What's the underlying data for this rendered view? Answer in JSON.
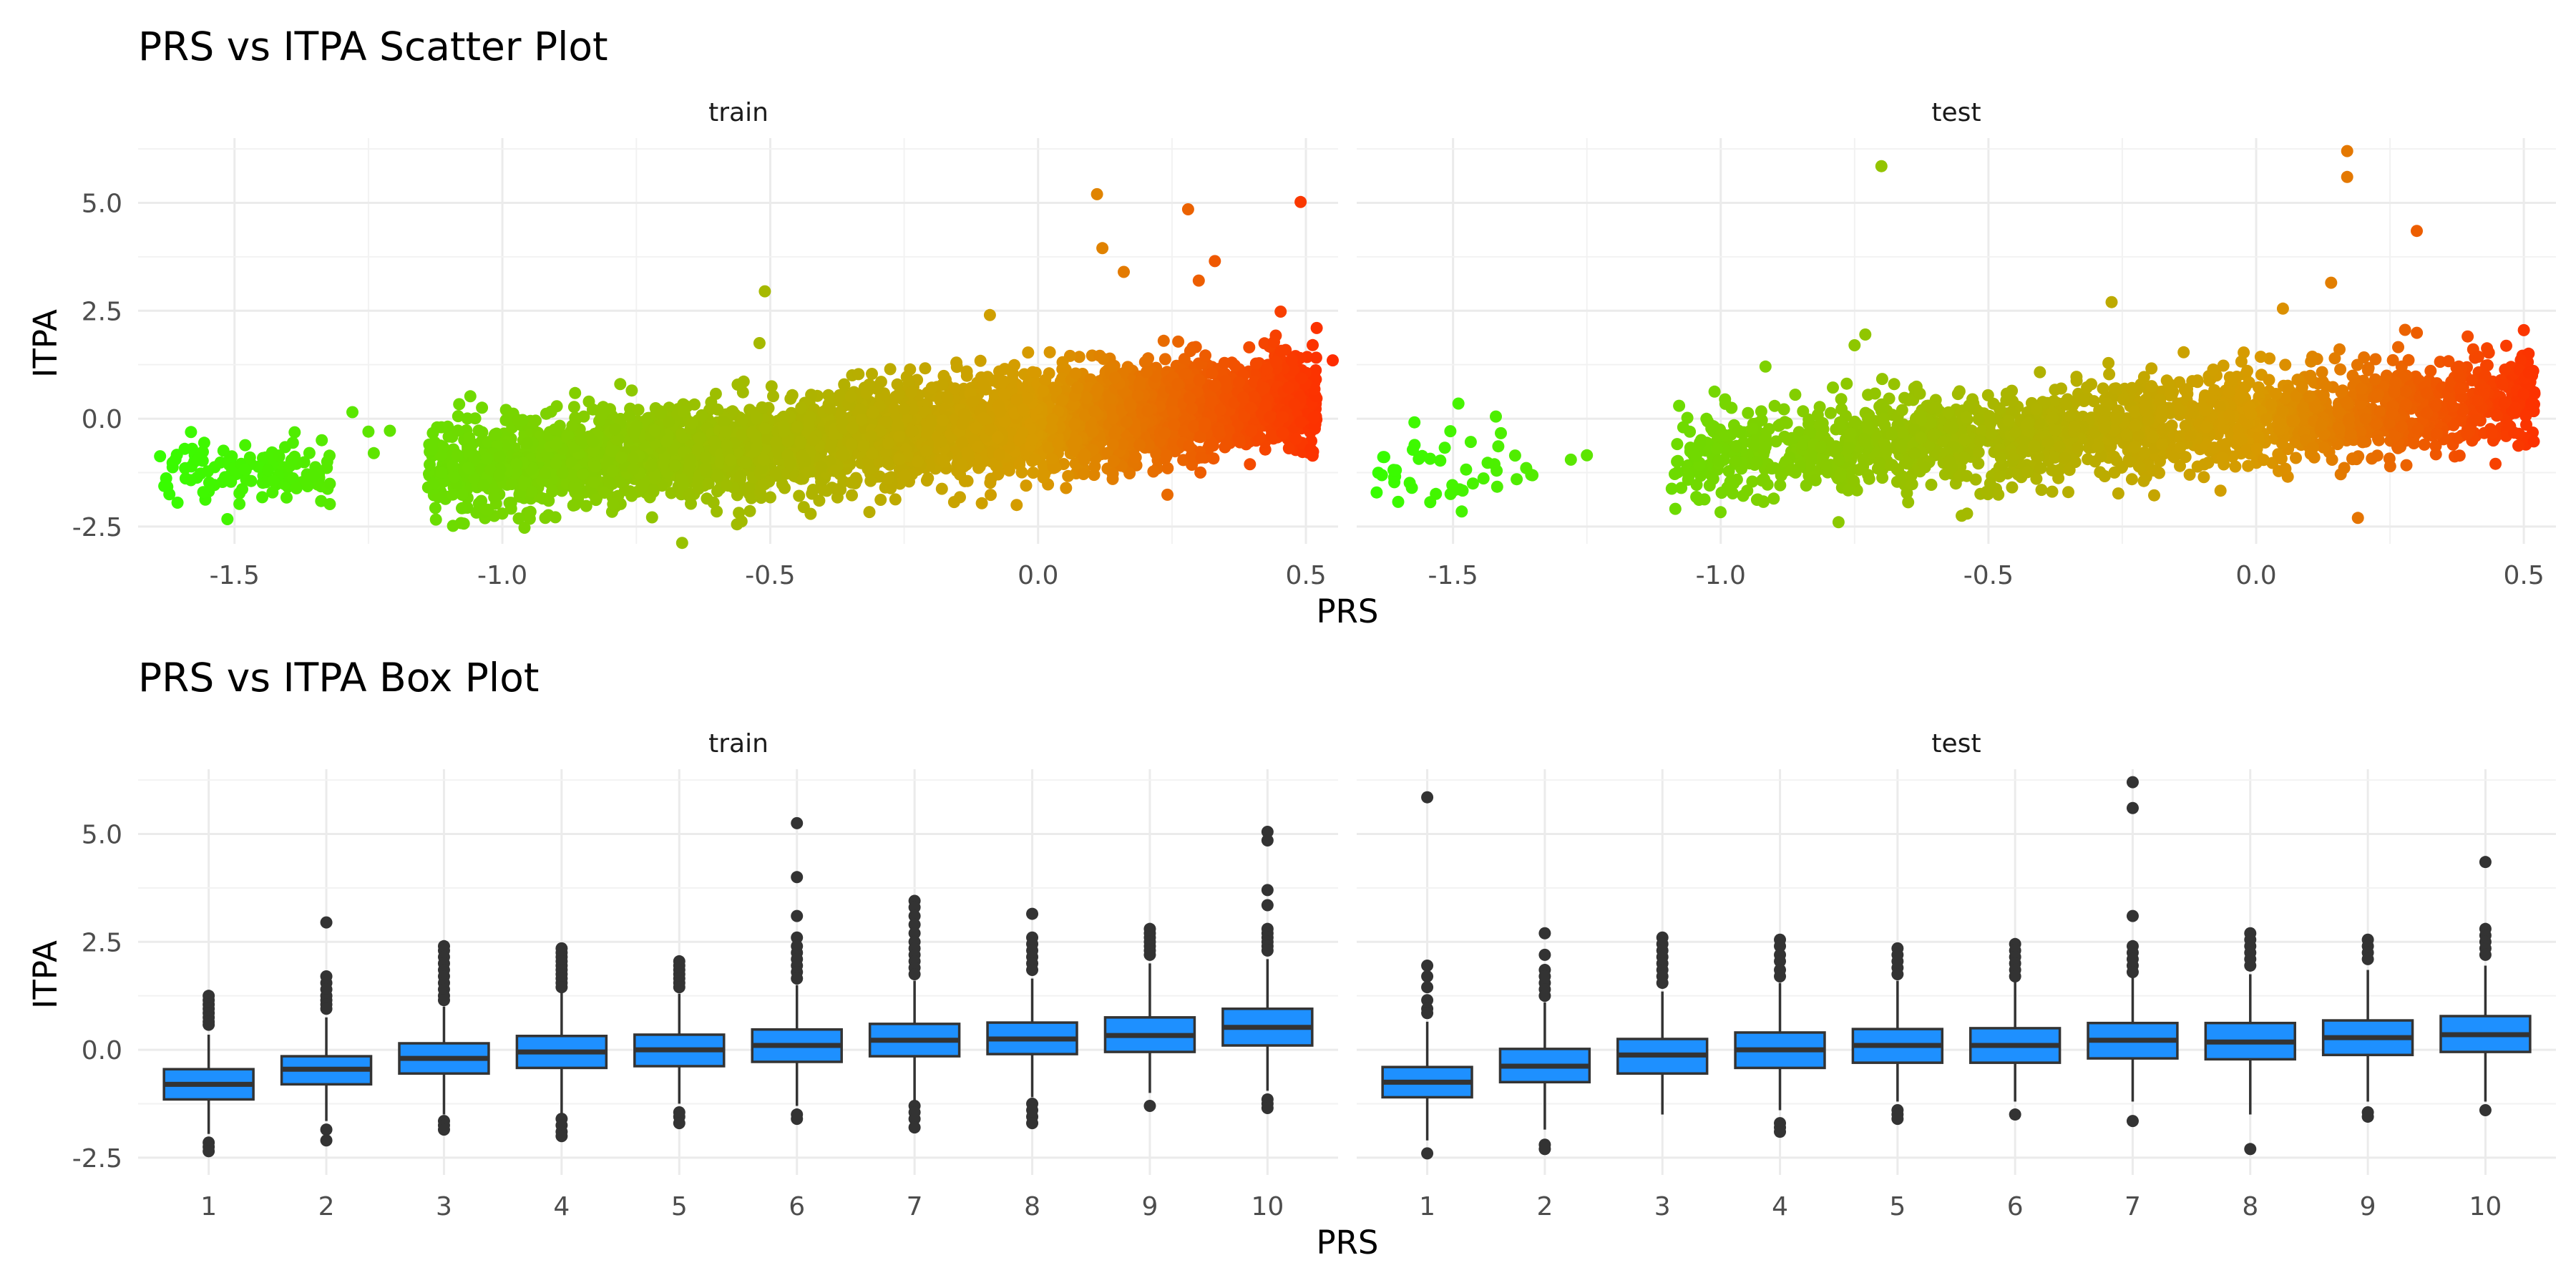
{
  "chart_data": [
    {
      "type": "scatter",
      "title": "PRS vs ITPA Scatter Plot",
      "xlabel": "PRS",
      "ylabel": "ITPA",
      "facets": [
        "train",
        "test"
      ],
      "xlim": [
        -1.68,
        0.56
      ],
      "ylim": [
        -2.9,
        6.5
      ],
      "x_ticks": [
        -1.5,
        -1.0,
        -0.5,
        0.0,
        0.5
      ],
      "x_tick_labels": [
        "-1.5",
        "-1.0",
        "-0.5",
        "0.0",
        "0.5"
      ],
      "y_ticks": [
        -2.5,
        0.0,
        2.5,
        5.0
      ],
      "y_tick_labels": [
        "-2.5",
        "0.0",
        "2.5",
        "5.0"
      ],
      "color_scale": {
        "low": "#33ff00",
        "mid": "#d89a00",
        "high": "#ff2a00",
        "mapped_to": "PRS"
      },
      "grid": true,
      "legend": "none",
      "panels": [
        {
          "name": "train",
          "trend": {
            "slope": 1.05,
            "intercept": -0.05
          },
          "clusters": [
            {
              "x_range": [
                -1.64,
                -1.32
              ],
              "y_center": -1.2,
              "y_spread": 0.35,
              "count": 120
            },
            {
              "x_range": [
                -1.14,
                0.52
              ],
              "y_center": -0.2,
              "y_spread": 0.55,
              "count": 4200
            }
          ],
          "outliers": [
            {
              "x": 0.11,
              "y": 5.2
            },
            {
              "x": 0.28,
              "y": 4.85
            },
            {
              "x": 0.49,
              "y": 5.02
            },
            {
              "x": 0.12,
              "y": 3.95
            },
            {
              "x": 0.33,
              "y": 3.65
            },
            {
              "x": -0.51,
              "y": 2.95
            },
            {
              "x": 0.16,
              "y": 3.4
            },
            {
              "x": 0.3,
              "y": 3.2
            },
            {
              "x": -0.52,
              "y": 1.75
            },
            {
              "x": 0.52,
              "y": 2.1
            },
            {
              "x": 0.55,
              "y": 1.35
            },
            {
              "x": -1.28,
              "y": 0.15
            },
            {
              "x": -1.25,
              "y": -0.3
            },
            {
              "x": -1.21,
              "y": -0.28
            },
            {
              "x": -1.24,
              "y": -0.8
            },
            {
              "x": -0.92,
              "y": -2.3
            },
            {
              "x": -1.0,
              "y": -2.2
            },
            {
              "x": -0.6,
              "y": -2.15
            },
            {
              "x": -0.04,
              "y": -2.0
            },
            {
              "x": -0.78,
              "y": 0.8
            },
            {
              "x": -0.09,
              "y": 2.4
            }
          ]
        },
        {
          "name": "test",
          "trend": {
            "slope": 0.85,
            "intercept": 0.0
          },
          "clusters": [
            {
              "x_range": [
                -1.65,
                -1.35
              ],
              "y_center": -1.3,
              "y_spread": 0.45,
              "count": 45
            },
            {
              "x_range": [
                -1.1,
                0.52
              ],
              "y_center": -0.2,
              "y_spread": 0.55,
              "count": 2000
            }
          ],
          "outliers": [
            {
              "x": -0.7,
              "y": 5.85
            },
            {
              "x": 0.17,
              "y": 6.2
            },
            {
              "x": 0.17,
              "y": 5.6
            },
            {
              "x": 0.3,
              "y": 4.35
            },
            {
              "x": 0.14,
              "y": 3.15
            },
            {
              "x": -1.49,
              "y": 0.35
            },
            {
              "x": -1.42,
              "y": 0.05
            },
            {
              "x": -0.73,
              "y": 1.95
            },
            {
              "x": -0.75,
              "y": 1.7
            },
            {
              "x": -0.27,
              "y": 2.7
            },
            {
              "x": 0.19,
              "y": -2.3
            },
            {
              "x": -0.78,
              "y": -2.4
            },
            {
              "x": -0.55,
              "y": -2.25
            },
            {
              "x": -0.54,
              "y": -2.2
            },
            {
              "x": 0.05,
              "y": 2.55
            },
            {
              "x": 0.5,
              "y": 2.05
            },
            {
              "x": -1.28,
              "y": -0.95
            },
            {
              "x": -1.25,
              "y": -0.85
            },
            {
              "x": -1.07,
              "y": -0.2
            },
            {
              "x": -0.98,
              "y": 0.25
            }
          ]
        }
      ]
    },
    {
      "type": "box",
      "title": "PRS vs ITPA Box Plot",
      "xlabel": "PRS",
      "ylabel": "ITPA",
      "facets": [
        "train",
        "test"
      ],
      "categories": [
        "1",
        "2",
        "3",
        "4",
        "5",
        "6",
        "7",
        "8",
        "9",
        "10"
      ],
      "ylim": [
        -2.9,
        6.5
      ],
      "y_ticks": [
        -2.5,
        0.0,
        2.5,
        5.0
      ],
      "y_tick_labels": [
        "-2.5",
        "0.0",
        "2.5",
        "5.0"
      ],
      "box_fill": "#1e90ff",
      "box_stroke": "#333333",
      "grid": true,
      "legend": "none",
      "panels": [
        {
          "name": "train",
          "boxes": [
            {
              "category": "1",
              "lower": -1.95,
              "q1": -1.15,
              "median": -0.8,
              "q3": -0.45,
              "upper": 0.35,
              "outliers": [
                1.25,
                1.15,
                1.05,
                0.95,
                0.85,
                0.75,
                0.65,
                0.58,
                -2.15,
                -2.25,
                -2.35
              ]
            },
            {
              "category": "2",
              "lower": -1.65,
              "q1": -0.8,
              "median": -0.45,
              "q3": -0.15,
              "upper": 0.75,
              "outliers": [
                2.95,
                1.7,
                1.55,
                1.4,
                1.25,
                1.15,
                1.05,
                0.95,
                -1.85,
                -2.1
              ]
            },
            {
              "category": "3",
              "lower": -1.5,
              "q1": -0.55,
              "median": -0.2,
              "q3": 0.15,
              "upper": 1.0,
              "outliers": [
                2.4,
                2.3,
                2.15,
                2.0,
                1.85,
                1.7,
                1.55,
                1.4,
                1.25,
                1.15,
                -1.65,
                -1.75,
                -1.85
              ]
            },
            {
              "category": "4",
              "lower": -1.55,
              "q1": -0.42,
              "median": -0.05,
              "q3": 0.32,
              "upper": 1.35,
              "outliers": [
                2.35,
                2.25,
                2.15,
                2.05,
                1.95,
                1.85,
                1.75,
                1.65,
                1.55,
                1.45,
                -1.6,
                -1.75,
                -1.9,
                -2.0
              ]
            },
            {
              "category": "5",
              "lower": -1.25,
              "q1": -0.38,
              "median": 0.0,
              "q3": 0.35,
              "upper": 1.3,
              "outliers": [
                2.05,
                1.95,
                1.85,
                1.75,
                1.65,
                1.55,
                1.45,
                -1.45,
                -1.55,
                -1.7
              ]
            },
            {
              "category": "6",
              "lower": -1.3,
              "q1": -0.28,
              "median": 0.1,
              "q3": 0.47,
              "upper": 1.5,
              "outliers": [
                5.25,
                4.0,
                3.1,
                2.6,
                2.4,
                2.25,
                2.1,
                1.95,
                1.8,
                1.65,
                -1.5,
                -1.6
              ]
            },
            {
              "category": "7",
              "lower": -1.2,
              "q1": -0.15,
              "median": 0.22,
              "q3": 0.6,
              "upper": 1.6,
              "outliers": [
                3.45,
                3.3,
                3.1,
                2.9,
                2.7,
                2.5,
                2.35,
                2.2,
                2.05,
                1.9,
                1.75,
                -1.3,
                -1.45,
                -1.6,
                -1.8
              ]
            },
            {
              "category": "8",
              "lower": -1.1,
              "q1": -0.1,
              "median": 0.25,
              "q3": 0.63,
              "upper": 1.65,
              "outliers": [
                3.15,
                2.6,
                2.45,
                2.3,
                2.15,
                2.0,
                1.85,
                -1.25,
                -1.4,
                -1.55,
                -1.7
              ]
            },
            {
              "category": "9",
              "lower": -1.0,
              "q1": -0.05,
              "median": 0.33,
              "q3": 0.75,
              "upper": 2.0,
              "outliers": [
                2.8,
                2.7,
                2.6,
                2.5,
                2.4,
                2.3,
                2.2,
                -1.3
              ]
            },
            {
              "category": "10",
              "lower": -0.95,
              "q1": 0.1,
              "median": 0.52,
              "q3": 0.95,
              "upper": 2.1,
              "outliers": [
                5.05,
                4.85,
                3.7,
                3.35,
                2.8,
                2.7,
                2.6,
                2.5,
                2.4,
                2.3,
                -1.15,
                -1.25,
                -1.35
              ]
            }
          ]
        },
        {
          "name": "test",
          "boxes": [
            {
              "category": "1",
              "lower": -2.1,
              "q1": -1.1,
              "median": -0.75,
              "q3": -0.4,
              "upper": 0.65,
              "outliers": [
                5.85,
                1.95,
                1.7,
                1.45,
                1.15,
                0.95,
                0.85,
                -2.4
              ]
            },
            {
              "category": "2",
              "lower": -1.85,
              "q1": -0.75,
              "median": -0.38,
              "q3": 0.02,
              "upper": 1.1,
              "outliers": [
                2.7,
                2.2,
                1.85,
                1.7,
                1.55,
                1.4,
                1.25,
                -2.2,
                -2.3
              ]
            },
            {
              "category": "3",
              "lower": -1.5,
              "q1": -0.55,
              "median": -0.12,
              "q3": 0.25,
              "upper": 1.35,
              "outliers": [
                2.6,
                2.45,
                2.3,
                2.15,
                2.0,
                1.85,
                1.7,
                1.55
              ]
            },
            {
              "category": "4",
              "lower": -1.4,
              "q1": -0.42,
              "median": 0.0,
              "q3": 0.4,
              "upper": 1.55,
              "outliers": [
                2.55,
                2.4,
                2.2,
                2.05,
                1.85,
                1.7,
                -1.7,
                -1.8,
                -1.9
              ]
            },
            {
              "category": "5",
              "lower": -1.2,
              "q1": -0.3,
              "median": 0.1,
              "q3": 0.48,
              "upper": 1.6,
              "outliers": [
                2.35,
                2.2,
                2.05,
                1.9,
                1.75,
                -1.4,
                -1.5,
                -1.6
              ]
            },
            {
              "category": "6",
              "lower": -1.2,
              "q1": -0.3,
              "median": 0.1,
              "q3": 0.5,
              "upper": 1.6,
              "outliers": [
                2.45,
                2.3,
                2.15,
                2.0,
                1.85,
                1.7,
                -1.5
              ]
            },
            {
              "category": "7",
              "lower": -1.2,
              "q1": -0.2,
              "median": 0.22,
              "q3": 0.62,
              "upper": 1.7,
              "outliers": [
                6.2,
                5.6,
                3.1,
                2.4,
                2.25,
                2.1,
                1.95,
                1.8,
                -1.65
              ]
            },
            {
              "category": "8",
              "lower": -1.5,
              "q1": -0.22,
              "median": 0.18,
              "q3": 0.62,
              "upper": 1.75,
              "outliers": [
                2.7,
                2.55,
                2.4,
                2.25,
                2.1,
                1.95,
                -2.3
              ]
            },
            {
              "category": "9",
              "lower": -1.2,
              "q1": -0.12,
              "median": 0.28,
              "q3": 0.68,
              "upper": 1.85,
              "outliers": [
                2.55,
                2.4,
                2.25,
                2.1,
                -1.45,
                -1.55
              ]
            },
            {
              "category": "10",
              "lower": -1.2,
              "q1": -0.05,
              "median": 0.35,
              "q3": 0.78,
              "upper": 1.95,
              "outliers": [
                4.35,
                2.8,
                2.65,
                2.5,
                2.35,
                2.2,
                -1.4
              ]
            }
          ]
        }
      ]
    }
  ]
}
